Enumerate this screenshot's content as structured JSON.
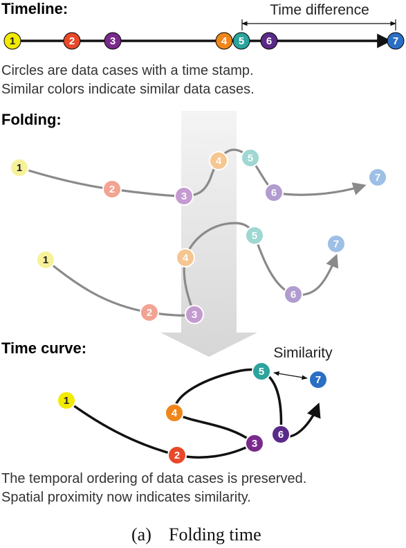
{
  "timeline": {
    "heading": "Timeline:",
    "time_difference_label": "Time difference",
    "caption_line1": "Circles are data cases with a time stamp.",
    "caption_line2": "Similar colors indicate similar data cases."
  },
  "folding": {
    "heading": "Folding:"
  },
  "time_curve": {
    "heading": "Time curve:",
    "similarity_label": "Similarity",
    "caption_line1": "The temporal ordering of data cases is preserved.",
    "caption_line2": "Spatial proximity now indicates similarity."
  },
  "figure_caption": {
    "label": "(a)",
    "text": "Folding time"
  },
  "points": [
    {
      "id": "1",
      "color": "#f2ea00",
      "light_color": "#f7f29a"
    },
    {
      "id": "2",
      "color": "#e8492a",
      "light_color": "#f2a392"
    },
    {
      "id": "3",
      "color": "#7a2a8c",
      "light_color": "#c49bd0"
    },
    {
      "id": "4",
      "color": "#f0861b",
      "light_color": "#f6c691"
    },
    {
      "id": "5",
      "color": "#2aa49c",
      "light_color": "#9fd7d2"
    },
    {
      "id": "6",
      "color": "#5a2a88",
      "light_color": "#b19ccf"
    },
    {
      "id": "7",
      "color": "#2a6fc4",
      "light_color": "#9ec0e6"
    }
  ]
}
